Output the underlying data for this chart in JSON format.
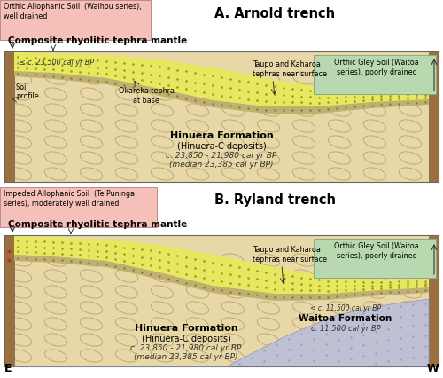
{
  "fig_width": 5.0,
  "fig_height": 4.26,
  "dpi": 100,
  "bg_color": "#ffffff",
  "hinuera_color": "#e8d8a8",
  "oval_color": "#c8b880",
  "tephra_yellow": "#e8e860",
  "tephra_yellow_right": "#d8d870",
  "gray_layer": "#c0b878",
  "gray_layer_right": "#b8b070",
  "soil_strip_color": "#a87840",
  "left_box_A_color": "#f5c0b8",
  "right_box_color": "#b8d8b8",
  "waitoa_color": "#c8c8d8",
  "panel_A": {
    "title": "A. Arnold trench",
    "left_box_text_L1": "Orthic Allophanic Soil  (Waihou series),",
    "left_box_text_L2": "well drained",
    "right_box_text_L1": "Orthic Gley Soil (Waitoa",
    "right_box_text_L2": "series), poorly drained",
    "tephra_label": "Composite rhyolitic tephra mantle",
    "tephra_age": "≤ c. 23,500 cal yr BP",
    "okareka_label_L1": "Okareka tephra",
    "okareka_label_L2": "at base",
    "taupo_label_L1": "Taupo and Kaharoa",
    "taupo_label_L2": "tephras near surface",
    "soil_profile_L1": "Soil",
    "soil_profile_L2": "profile",
    "hinuera_L1": "Hinuera Formation",
    "hinuera_L2": "(Hinuera-C deposits)",
    "hinuera_L3": "c. 23,850 - 21,980 cal yr BP",
    "hinuera_L4": "(median 23,385 cal yr BP)"
  },
  "panel_B": {
    "title": "B. Ryland trench",
    "left_box_text_L1": "Impeded Allophanic Soil  (Te Puninga",
    "left_box_text_L2": "series), moderately well drained",
    "right_box_text_L1": "Orthic Gley Soil (Waitoa",
    "right_box_text_L2": "series), poorly drained",
    "tephra_label": "Composite rhyolitic tephra mantle",
    "taupo_label_L1": "Taupo and Kaharoa",
    "taupo_label_L2": "tephras near surface",
    "waitoa_age": "< c. 11,500 cal yr BP",
    "waitoa_L1": "Waitoa Formation",
    "waitoa_L2": "c. 11,500 cal yr BP",
    "hinuera_L1": "Hinuera Formation",
    "hinuera_L2": "(Hinuera-C deposits)",
    "hinuera_L3": "c. 23,850 - 21,980 cal yr BP",
    "hinuera_L4": "(median 23,385 cal yr BP)",
    "asterisk_color": "#cc2200"
  },
  "east_label": "E",
  "west_label": "W"
}
